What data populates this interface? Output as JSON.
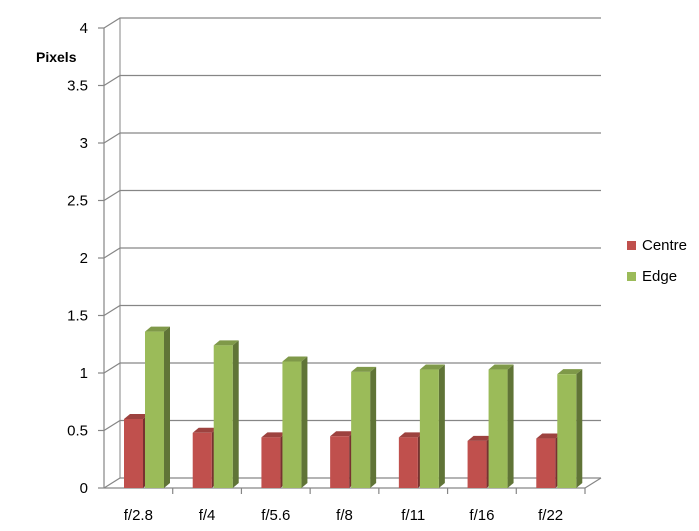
{
  "chart_data": {
    "type": "bar",
    "title": "",
    "xlabel": "",
    "ylabel": "Pixels",
    "categories": [
      "f/2.8",
      "f/4",
      "f/5.6",
      "f/8",
      "f/11",
      "f/16",
      "f/22"
    ],
    "series": [
      {
        "name": "Centre",
        "values": [
          0.6,
          0.48,
          0.44,
          0.45,
          0.44,
          0.41,
          0.43
        ],
        "color": "#c0504d"
      },
      {
        "name": "Edge",
        "values": [
          1.36,
          1.24,
          1.1,
          1.01,
          1.03,
          1.03,
          0.99
        ],
        "color": "#9bbb59"
      }
    ],
    "yticks": [
      "0",
      "0.5",
      "1",
      "1.5",
      "2",
      "2.5",
      "3",
      "3.5",
      "4"
    ],
    "ylim": [
      0,
      4
    ],
    "grid": true,
    "chart_style": "3d-clustered-column",
    "legend": "right"
  }
}
